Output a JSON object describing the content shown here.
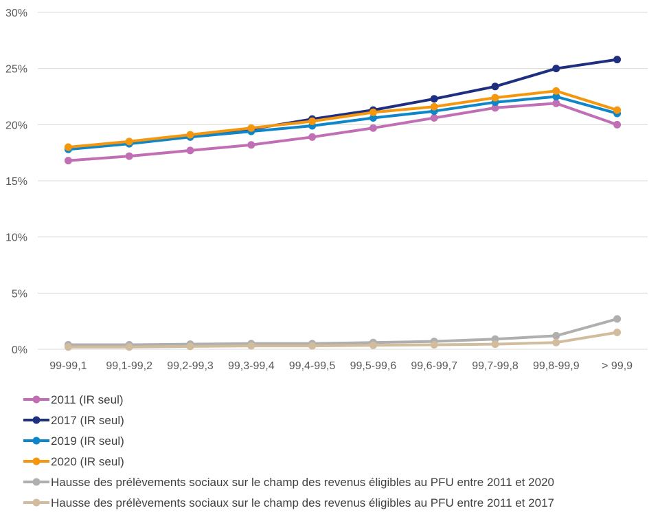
{
  "chart_data": {
    "type": "line",
    "title": "",
    "xlabel": "",
    "ylabel": "",
    "ylim": [
      0,
      30
    ],
    "y_ticks": [
      "0%",
      "5%",
      "10%",
      "15%",
      "20%",
      "25%",
      "30%"
    ],
    "y_tick_values": [
      0,
      5,
      10,
      15,
      20,
      25,
      30
    ],
    "grid": "horizontal",
    "legend_position": "bottom",
    "categories": [
      "99-99,1",
      "99,1-99,2",
      "99,2-99,3",
      "99,3-99,4",
      "99,4-99,5",
      "99,5-99,6",
      "99,6-99,7",
      "99,7-99,8",
      "99,8-99,9",
      "> 99,9"
    ],
    "series": [
      {
        "name": "2011 (IR seul)",
        "color": "#c06fb5",
        "values": [
          16.8,
          17.2,
          17.7,
          18.2,
          18.9,
          19.7,
          20.6,
          21.5,
          21.9,
          20.0
        ]
      },
      {
        "name": "2017 (IR seul)",
        "color": "#1f2f80",
        "values": [
          17.9,
          18.4,
          19.0,
          19.6,
          20.5,
          21.3,
          22.3,
          23.4,
          25.0,
          25.8
        ]
      },
      {
        "name": "2019 (IR seul)",
        "color": "#0f86c8",
        "values": [
          17.8,
          18.3,
          18.9,
          19.4,
          19.9,
          20.6,
          21.2,
          22.0,
          22.5,
          21.0
        ]
      },
      {
        "name": "2020 (IR seul)",
        "color": "#f5960f",
        "values": [
          18.0,
          18.5,
          19.1,
          19.7,
          20.3,
          21.1,
          21.6,
          22.4,
          23.0,
          21.3
        ]
      },
      {
        "name": "Hausse des prélèvements sociaux sur le champ des revenus éligibles au PFU entre 2011 et 2020",
        "color": "#afafaf",
        "values": [
          0.4,
          0.4,
          0.45,
          0.5,
          0.5,
          0.6,
          0.7,
          0.9,
          1.2,
          2.7
        ]
      },
      {
        "name": "Hausse des prélèvements sociaux sur le champ des revenus éligibles au PFU entre 2011 et 2017",
        "color": "#d2bc9e",
        "values": [
          0.2,
          0.2,
          0.25,
          0.3,
          0.3,
          0.35,
          0.4,
          0.45,
          0.6,
          1.5
        ]
      }
    ]
  }
}
